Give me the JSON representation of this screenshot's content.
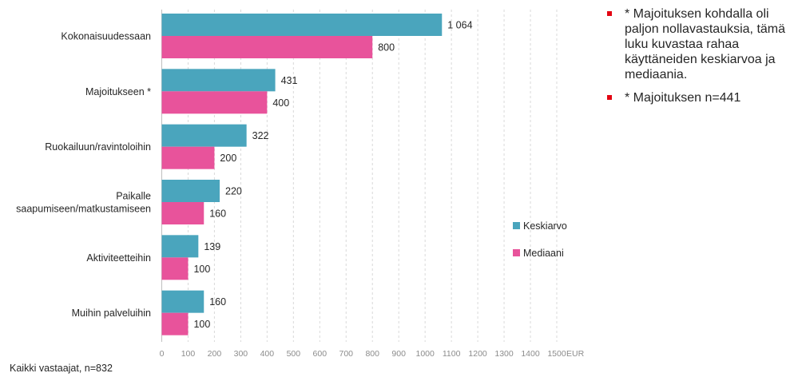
{
  "colors": {
    "series1": "#4aa5bd",
    "series2": "#e8539b",
    "grid": "#d9d9d9",
    "bullet": "#e30613"
  },
  "chart_data": {
    "type": "bar",
    "orientation": "horizontal",
    "categories": [
      "Kokonaisuudessaan",
      "Majoitukseen *",
      "Ruokailuun/ravintoloihin",
      "Paikalle saapumiseen/matkustamiseen",
      "Aktiviteetteihin",
      "Muihin palveluihin"
    ],
    "category_label_lines": [
      [
        "Kokonaisuudessaan"
      ],
      [
        "Majoitukseen *"
      ],
      [
        "Ruokailuun/ravintoloihin"
      ],
      [
        "Paikalle",
        "saapumiseen/matkustamiseen"
      ],
      [
        "Aktiviteetteihin"
      ],
      [
        "Muihin palveluihin"
      ]
    ],
    "series": [
      {
        "name": "Keskiarvo",
        "values": [
          1064,
          431,
          322,
          220,
          139,
          160
        ],
        "labels": [
          "1 064",
          "431",
          "322",
          "220",
          "139",
          "160"
        ]
      },
      {
        "name": "Mediaani",
        "values": [
          800,
          400,
          200,
          160,
          100,
          100
        ],
        "labels": [
          "800",
          "400",
          "200",
          "160",
          "100",
          "100"
        ]
      }
    ],
    "xlim": [
      0,
      1500
    ],
    "xticks": [
      0,
      100,
      200,
      300,
      400,
      500,
      600,
      700,
      800,
      900,
      1000,
      1100,
      1200,
      1300,
      1400,
      1500
    ],
    "unit": "EUR",
    "grid": true,
    "legend_position": "right"
  },
  "notes": [
    "* Majoituksen kohdalla oli paljon nollavastauksia, tämä luku kuvastaa rahaa käyttäneiden keskiarvoa ja mediaania.",
    "* Majoituksen n=441"
  ],
  "footnote": "Kaikki vastaajat, n=832"
}
